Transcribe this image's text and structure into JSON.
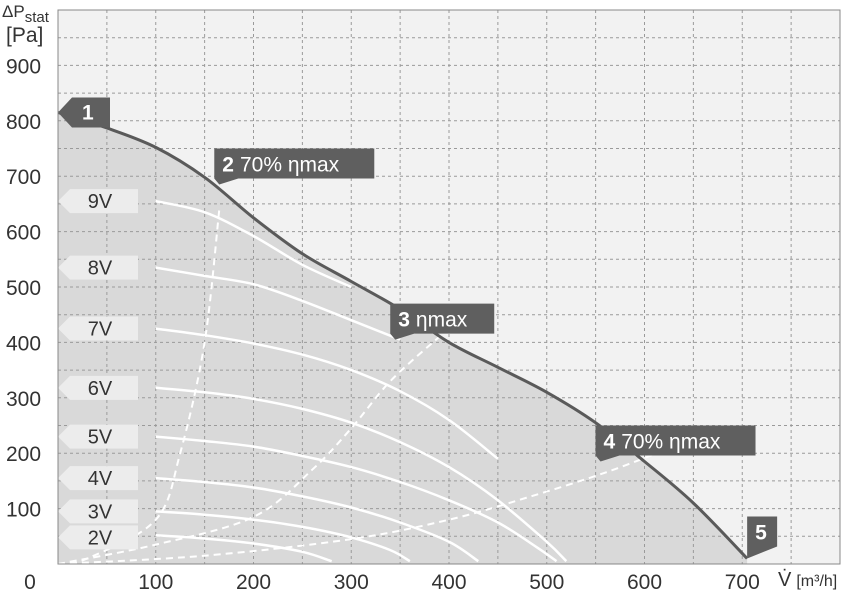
{
  "chart_data": {
    "type": "line",
    "y_axis": {
      "label": "ΔP",
      "label_subscript": "stat",
      "unit": "[Pa]",
      "range": [
        0,
        1000
      ],
      "ticks": [
        100,
        200,
        300,
        400,
        500,
        600,
        700,
        800,
        900
      ]
    },
    "x_axis": {
      "label": "V̇",
      "unit": "[m³/h]",
      "range": [
        0,
        800
      ],
      "ticks": [
        100,
        200,
        300,
        400,
        500,
        600,
        700
      ]
    },
    "origin_label": "0",
    "grid": true,
    "max_curve": {
      "name": "",
      "points": [
        [
          0,
          815
        ],
        [
          50,
          787
        ],
        [
          100,
          752
        ],
        [
          150,
          698
        ],
        [
          200,
          625
        ],
        [
          250,
          560
        ],
        [
          300,
          510
        ],
        [
          350,
          460
        ],
        [
          400,
          400
        ],
        [
          450,
          355
        ],
        [
          500,
          310
        ],
        [
          550,
          255
        ],
        [
          600,
          185
        ],
        [
          650,
          110
        ],
        [
          705,
          10
        ]
      ]
    },
    "voltage_curves": [
      {
        "label": "9V",
        "points": [
          [
            100,
            655
          ],
          [
            150,
            635
          ],
          [
            200,
            592
          ],
          [
            250,
            540
          ],
          [
            300,
            500
          ]
        ]
      },
      {
        "label": "8V",
        "points": [
          [
            100,
            535
          ],
          [
            150,
            520
          ],
          [
            200,
            505
          ],
          [
            250,
            475
          ],
          [
            300,
            440
          ],
          [
            350,
            405
          ]
        ]
      },
      {
        "label": "7V",
        "points": [
          [
            100,
            425
          ],
          [
            150,
            413
          ],
          [
            200,
            398
          ],
          [
            250,
            378
          ],
          [
            300,
            350
          ],
          [
            350,
            312
          ],
          [
            400,
            260
          ],
          [
            450,
            190
          ]
        ]
      },
      {
        "label": "6V",
        "points": [
          [
            100,
            318
          ],
          [
            150,
            310
          ],
          [
            200,
            298
          ],
          [
            250,
            280
          ],
          [
            300,
            255
          ],
          [
            350,
            220
          ],
          [
            400,
            175
          ],
          [
            450,
            115
          ],
          [
            500,
            40
          ],
          [
            520,
            5
          ]
        ]
      },
      {
        "label": "5V",
        "points": [
          [
            100,
            230
          ],
          [
            150,
            222
          ],
          [
            200,
            212
          ],
          [
            250,
            195
          ],
          [
            300,
            175
          ],
          [
            350,
            148
          ],
          [
            400,
            115
          ],
          [
            450,
            75
          ],
          [
            490,
            30
          ],
          [
            510,
            5
          ]
        ]
      },
      {
        "label": "4V",
        "points": [
          [
            100,
            155
          ],
          [
            150,
            148
          ],
          [
            200,
            138
          ],
          [
            250,
            122
          ],
          [
            300,
            102
          ],
          [
            350,
            75
          ],
          [
            400,
            40
          ],
          [
            430,
            5
          ]
        ]
      },
      {
        "label": "3V",
        "points": [
          [
            100,
            95
          ],
          [
            150,
            89
          ],
          [
            200,
            80
          ],
          [
            250,
            67
          ],
          [
            300,
            48
          ],
          [
            340,
            25
          ],
          [
            360,
            5
          ]
        ]
      },
      {
        "label": "2V",
        "points": [
          [
            100,
            52
          ],
          [
            150,
            46
          ],
          [
            200,
            37
          ],
          [
            250,
            22
          ],
          [
            280,
            5
          ]
        ]
      }
    ],
    "efficiency_lines": [
      {
        "name": "",
        "points": [
          [
            0,
            0
          ],
          [
            30,
            10
          ],
          [
            100,
            80
          ],
          [
            125,
            200
          ],
          [
            150,
            400
          ],
          [
            165,
            640
          ]
        ]
      },
      {
        "name": "",
        "points": [
          [
            0,
            0
          ],
          [
            100,
            35
          ],
          [
            200,
            85
          ],
          [
            260,
            170
          ],
          [
            300,
            245
          ],
          [
            340,
            330
          ],
          [
            390,
            410
          ]
        ]
      },
      {
        "name": "",
        "points": [
          [
            0,
            0
          ],
          [
            150,
            15
          ],
          [
            300,
            45
          ],
          [
            400,
            80
          ],
          [
            480,
            120
          ],
          [
            560,
            165
          ],
          [
            620,
            205
          ]
        ]
      }
    ],
    "operating_points": [
      {
        "id": "1",
        "label": "",
        "x": 0,
        "y": 815
      },
      {
        "id": "2",
        "label": "70% ηmax",
        "x": 165,
        "y": 685
      },
      {
        "id": "3",
        "label": "ηmax",
        "x": 345,
        "y": 405
      },
      {
        "id": "4",
        "label": "70% ηmax",
        "x": 555,
        "y": 185
      },
      {
        "id": "5",
        "label": "",
        "x": 705,
        "y": 10
      }
    ],
    "colors": {
      "plot_background": "#f2f2f2",
      "region_fill": "#d9d9d9",
      "grid": "#9a9a9a",
      "max_curve": "#5a5a5a",
      "callout": "#5f5f5f",
      "voltage_curves": "#ffffff",
      "voltage_tag": "#ececec"
    }
  }
}
